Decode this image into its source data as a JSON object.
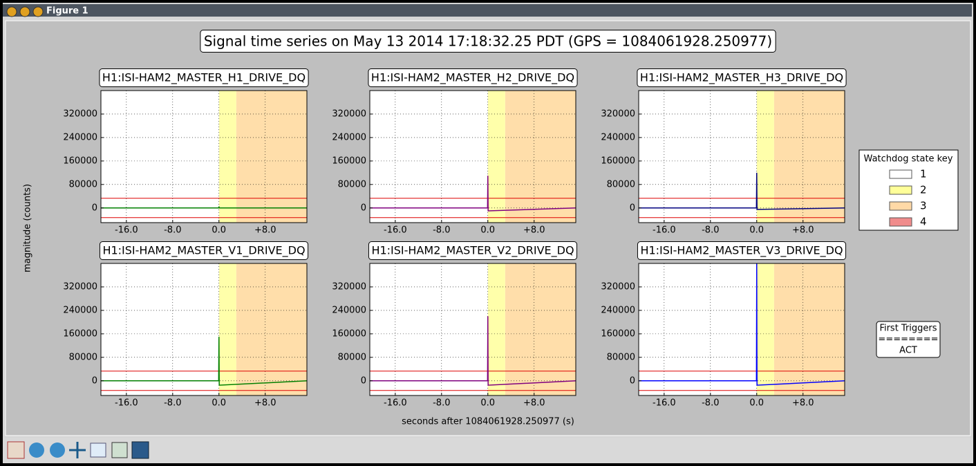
{
  "window": {
    "title": "Figure 1"
  },
  "figure": {
    "title": "Signal time series on May 13 2014 17:18:32.25 PDT (GPS = 1084061928.250977)",
    "xlabel": "seconds after 1084061928.250977 (s)",
    "ylabel": "magnitude (counts)",
    "legend": {
      "title": "Watchdog state key",
      "entries": [
        {
          "label": "1",
          "color": "#ffffff"
        },
        {
          "label": "2",
          "color": "#ffff99"
        },
        {
          "label": "3",
          "color": "#ffd9a6"
        },
        {
          "label": "4",
          "color": "#f08c8c"
        }
      ]
    },
    "triggers": [
      "First Triggers",
      "========",
      "ACT"
    ]
  },
  "chart_data": [
    {
      "type": "line",
      "title": "H1:ISI-HAM2_MASTER_H1_DRIVE_DQ",
      "x": [
        -20.4,
        -0.05,
        0,
        0.05,
        15.2
      ],
      "series": [
        {
          "color": "#007f00",
          "values": [
            0,
            0,
            5000,
            0,
            0
          ]
        }
      ],
      "xlim": [
        -20.4,
        15.2
      ],
      "ylim": [
        -50000,
        400000
      ],
      "xticks": [
        {
          "value": -16,
          "label": "-16.0"
        },
        {
          "value": -8,
          "label": "-8.0"
        },
        {
          "value": 0,
          "label": "0.0"
        },
        {
          "value": 8,
          "label": "+8.0"
        }
      ],
      "yticks": [
        0,
        80000,
        160000,
        240000,
        320000
      ],
      "grid": true,
      "spans": [
        {
          "start": 0,
          "end": 3,
          "color": "#ffffaa"
        },
        {
          "start": 3,
          "end": 15.2,
          "color": "#ffdeaa"
        }
      ],
      "thresholds": [
        33000,
        -33000
      ],
      "threshold_color": "#dd0000"
    },
    {
      "type": "line",
      "title": "H1:ISI-HAM2_MASTER_H2_DRIVE_DQ",
      "x": [
        -20.4,
        -0.05,
        0,
        0.05,
        15.2
      ],
      "series": [
        {
          "color": "#7f007f",
          "values": [
            0,
            0,
            110000,
            -10000,
            0
          ]
        }
      ],
      "xlim": [
        -20.4,
        15.2
      ],
      "ylim": [
        -50000,
        400000
      ],
      "xticks": [
        {
          "value": -16,
          "label": "-16.0"
        },
        {
          "value": -8,
          "label": "-8.0"
        },
        {
          "value": 0,
          "label": "0.0"
        },
        {
          "value": 8,
          "label": "+8.0"
        }
      ],
      "yticks": [
        0,
        80000,
        160000,
        240000,
        320000
      ],
      "grid": true,
      "spans": [
        {
          "start": 0,
          "end": 3,
          "color": "#ffffaa"
        },
        {
          "start": 3,
          "end": 15.2,
          "color": "#ffdeaa"
        }
      ],
      "thresholds": [
        33000,
        -33000
      ],
      "threshold_color": "#dd0000"
    },
    {
      "type": "line",
      "title": "H1:ISI-HAM2_MASTER_H3_DRIVE_DQ",
      "x": [
        -20.4,
        -0.05,
        0,
        0.05,
        15.2
      ],
      "series": [
        {
          "color": "#00007f",
          "values": [
            0,
            0,
            120000,
            -5000,
            0
          ]
        }
      ],
      "xlim": [
        -20.4,
        15.2
      ],
      "ylim": [
        -50000,
        400000
      ],
      "xticks": [
        {
          "value": -16,
          "label": "-16.0"
        },
        {
          "value": -8,
          "label": "-8.0"
        },
        {
          "value": 0,
          "label": "0.0"
        },
        {
          "value": 8,
          "label": "+8.0"
        }
      ],
      "yticks": [
        0,
        80000,
        160000,
        240000,
        320000
      ],
      "grid": true,
      "spans": [
        {
          "start": 0,
          "end": 3,
          "color": "#ffffaa"
        },
        {
          "start": 3,
          "end": 15.2,
          "color": "#ffdeaa"
        }
      ],
      "thresholds": [
        33000,
        -33000
      ],
      "threshold_color": "#dd0000"
    },
    {
      "type": "line",
      "title": "H1:ISI-HAM2_MASTER_V1_DRIVE_DQ",
      "x": [
        -20.4,
        -0.05,
        0,
        0.05,
        15.2
      ],
      "series": [
        {
          "color": "#007f00",
          "values": [
            0,
            0,
            150000,
            -15000,
            0
          ]
        }
      ],
      "xlim": [
        -20.4,
        15.2
      ],
      "ylim": [
        -50000,
        400000
      ],
      "xticks": [
        {
          "value": -16,
          "label": "-16.0"
        },
        {
          "value": -8,
          "label": "-8.0"
        },
        {
          "value": 0,
          "label": "0.0"
        },
        {
          "value": 8,
          "label": "+8.0"
        }
      ],
      "yticks": [
        0,
        80000,
        160000,
        240000,
        320000
      ],
      "grid": true,
      "spans": [
        {
          "start": 0,
          "end": 3,
          "color": "#ffffaa"
        },
        {
          "start": 3,
          "end": 15.2,
          "color": "#ffdeaa"
        }
      ],
      "thresholds": [
        33000,
        -33000
      ],
      "threshold_color": "#dd0000"
    },
    {
      "type": "line",
      "title": "H1:ISI-HAM2_MASTER_V2_DRIVE_DQ",
      "x": [
        -20.4,
        -0.05,
        0,
        0.05,
        15.2
      ],
      "series": [
        {
          "color": "#7f007f",
          "values": [
            0,
            0,
            220000,
            -15000,
            0
          ]
        }
      ],
      "xlim": [
        -20.4,
        15.2
      ],
      "ylim": [
        -50000,
        400000
      ],
      "xticks": [
        {
          "value": -16,
          "label": "-16.0"
        },
        {
          "value": -8,
          "label": "-8.0"
        },
        {
          "value": 0,
          "label": "0.0"
        },
        {
          "value": 8,
          "label": "+8.0"
        }
      ],
      "yticks": [
        0,
        80000,
        160000,
        240000,
        320000
      ],
      "grid": true,
      "spans": [
        {
          "start": 0,
          "end": 3,
          "color": "#ffffaa"
        },
        {
          "start": 3,
          "end": 15.2,
          "color": "#ffdeaa"
        }
      ],
      "thresholds": [
        33000,
        -33000
      ],
      "threshold_color": "#dd0000"
    },
    {
      "type": "line",
      "title": "H1:ISI-HAM2_MASTER_V3_DRIVE_DQ",
      "x": [
        -20.4,
        -0.05,
        0,
        0.05,
        15.2
      ],
      "series": [
        {
          "color": "#0000ff",
          "values": [
            0,
            0,
            400000,
            -15000,
            0
          ]
        }
      ],
      "xlim": [
        -20.4,
        15.2
      ],
      "ylim": [
        -50000,
        400000
      ],
      "xticks": [
        {
          "value": -16,
          "label": "-16.0"
        },
        {
          "value": -8,
          "label": "-8.0"
        },
        {
          "value": 0,
          "label": "0.0"
        },
        {
          "value": 8,
          "label": "+8.0"
        }
      ],
      "yticks": [
        0,
        80000,
        160000,
        240000,
        320000
      ],
      "grid": true,
      "spans": [
        {
          "start": 0,
          "end": 3,
          "color": "#ffffaa"
        },
        {
          "start": 3,
          "end": 15.2,
          "color": "#ffdeaa"
        }
      ],
      "thresholds": [
        33000,
        -33000
      ],
      "threshold_color": "#dd0000"
    }
  ]
}
